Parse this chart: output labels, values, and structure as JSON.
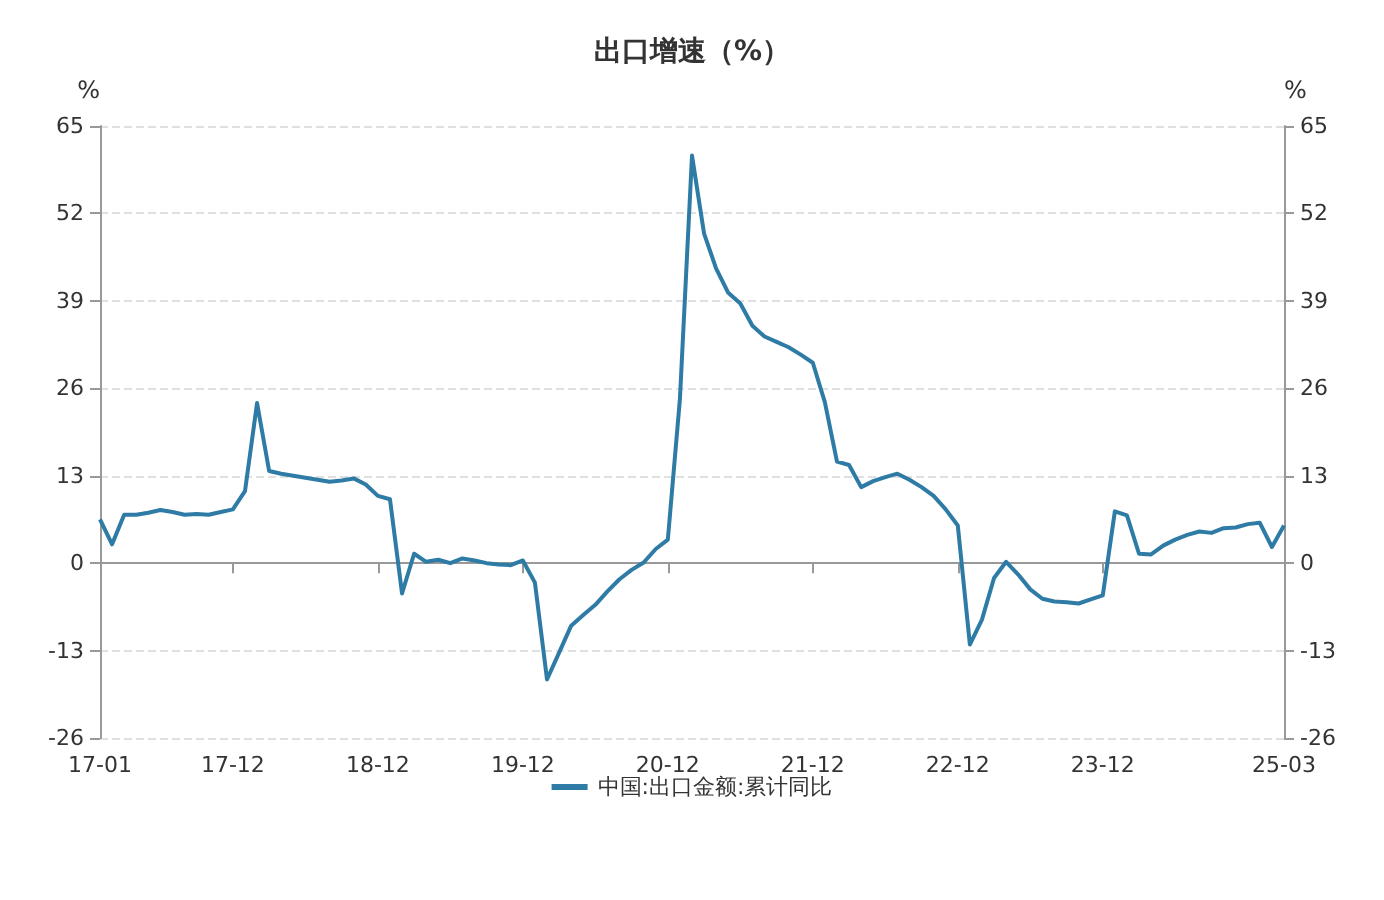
{
  "chart_data": {
    "type": "line",
    "title": "出口增速（%）",
    "ylabel": "%",
    "y2label": "%",
    "categories": [
      "17-01",
      null,
      null,
      null,
      null,
      null,
      null,
      null,
      null,
      null,
      null,
      "17-12",
      null,
      null,
      null,
      null,
      null,
      null,
      null,
      null,
      null,
      null,
      null,
      "18-12",
      null,
      null,
      null,
      null,
      null,
      null,
      null,
      null,
      null,
      null,
      null,
      "19-12",
      null,
      null,
      null,
      null,
      null,
      null,
      null,
      null,
      null,
      null,
      null,
      "20-12",
      null,
      null,
      null,
      null,
      null,
      null,
      null,
      null,
      null,
      null,
      null,
      "21-12",
      null,
      null,
      null,
      null,
      null,
      null,
      null,
      null,
      null,
      null,
      null,
      "22-12",
      null,
      null,
      null,
      null,
      null,
      null,
      null,
      null,
      null,
      null,
      null,
      "23-12",
      null,
      null,
      null,
      null,
      null,
      null,
      null,
      null,
      null,
      null,
      null,
      null,
      null,
      null,
      "25-03"
    ],
    "series": [
      {
        "name": "中国:出口金额:累计同比",
        "color": "#2e7ba6",
        "values": [
          6.5,
          2.8,
          7.2,
          7.2,
          7.5,
          7.9,
          7.6,
          7.2,
          7.3,
          7.2,
          7.6,
          8.0,
          10.7,
          23.8,
          13.7,
          13.3,
          13.0,
          12.7,
          12.4,
          12.1,
          12.3,
          12.6,
          11.7,
          10.0,
          9.5,
          -4.5,
          1.4,
          0.2,
          0.5,
          0,
          0.7,
          0.4,
          0,
          -0.2,
          -0.3,
          0.4,
          -2.9,
          -17.3,
          -13.3,
          -9.3,
          -7.7,
          -6.2,
          -4.2,
          -2.4,
          -1.0,
          0.1,
          2.1,
          3.5,
          24.4,
          60.6,
          49,
          43.8,
          40.2,
          38.6,
          35.3,
          33.7,
          32.9,
          32.1,
          31,
          29.8,
          23.9,
          15.1,
          14.6,
          11.3,
          12.2,
          12.8,
          13.3,
          12.4,
          11.3,
          10.0,
          8.0,
          5.6,
          -12.1,
          -8.4,
          -2.2,
          0.2,
          -1.7,
          -3.9,
          -5.3,
          -5.7,
          -5.8,
          -6.0,
          -5.4,
          -4.8,
          7.7,
          7.1,
          1.4,
          1.3,
          2.6,
          3.5,
          4.2,
          4.7,
          4.5,
          5.2,
          5.3,
          5.8,
          6.0,
          2.4,
          5.6
        ]
      }
    ],
    "ylim": [
      -26,
      65
    ],
    "yticks": [
      -26,
      -13,
      0,
      13,
      26,
      39,
      52,
      65
    ],
    "y2lim": [
      -26,
      65
    ],
    "y2ticks": [
      -26,
      -13,
      0,
      13,
      26,
      39,
      52,
      65
    ],
    "grid": "y",
    "legend": "bottom",
    "marker": "none",
    "line_style": "solid"
  }
}
